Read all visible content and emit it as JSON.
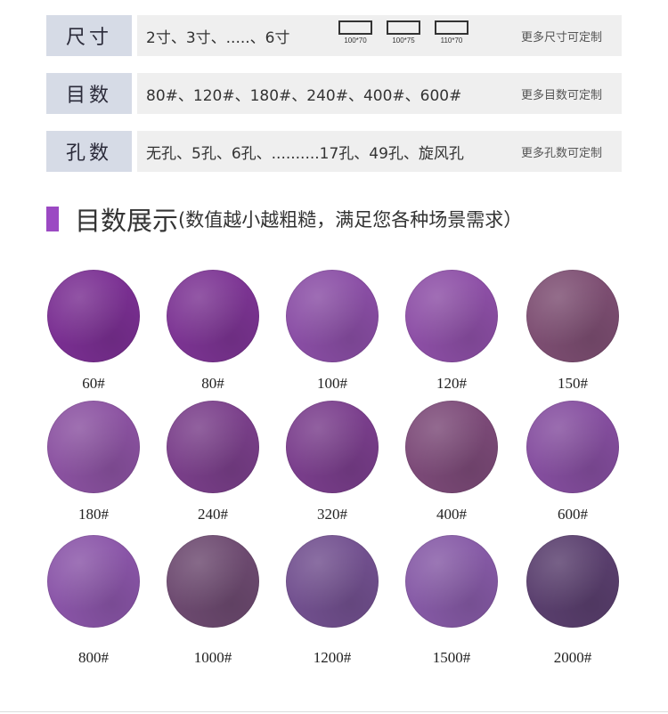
{
  "specs": {
    "size": {
      "label": "尺寸",
      "values": "2寸、3寸、.....、6寸",
      "boxes": [
        "100*70",
        "100*75",
        "110*70"
      ],
      "note": "更多尺寸可定制"
    },
    "grit": {
      "label": "目数",
      "values": "80#、120#、180#、240#、400#、600#",
      "note": "更多目数可定制"
    },
    "holes": {
      "label": "孔数",
      "values": "无孔、5孔、6孔、..........17孔、49孔、旋风孔",
      "note": "更多孔数可定制"
    }
  },
  "section": {
    "title": "目数展示",
    "subtitle": "(数值越小越粗糙，满足您各种场景需求）",
    "accent_color": "#9b49c3"
  },
  "swatches": [
    {
      "label": "60#",
      "color": "#7a2f92"
    },
    {
      "label": "80#",
      "color": "#7c3493"
    },
    {
      "label": "100#",
      "color": "#8a4ea5"
    },
    {
      "label": "120#",
      "color": "#8d4fa6"
    },
    {
      "label": "150#",
      "color": "#7d4e72"
    },
    {
      "label": "180#",
      "color": "#8b52a1"
    },
    {
      "label": "240#",
      "color": "#7a3f8a"
    },
    {
      "label": "320#",
      "color": "#7a3e8c"
    },
    {
      "label": "400#",
      "color": "#7c4a78"
    },
    {
      "label": "600#",
      "color": "#854e9f"
    },
    {
      "label": "800#",
      "color": "#8a55a8"
    },
    {
      "label": "1000#",
      "color": "#6d4a70"
    },
    {
      "label": "1200#",
      "color": "#72508f"
    },
    {
      "label": "1500#",
      "color": "#865aa6"
    },
    {
      "label": "2000#",
      "color": "#5a3f6e"
    }
  ]
}
